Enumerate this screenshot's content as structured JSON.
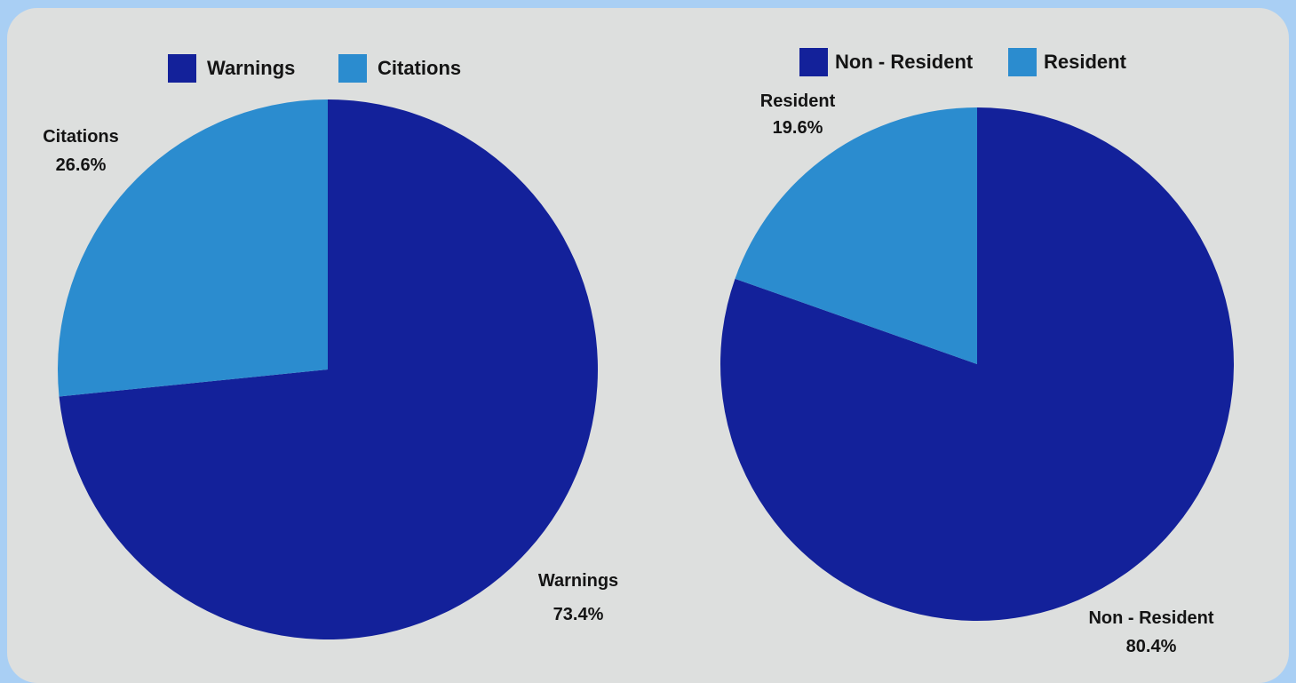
{
  "colors": {
    "page_background": "#a9cff4",
    "panel_background": "#dddfde",
    "dark_blue": "#13219a",
    "light_blue": "#2b8ccf"
  },
  "chart_data": [
    {
      "type": "pie",
      "title": "",
      "legend_placement": "top",
      "slices": [
        {
          "label": "Warnings",
          "value": 73.4,
          "display": "73.4%",
          "color": "#13219a"
        },
        {
          "label": "Citations",
          "value": 26.6,
          "display": "26.6%",
          "color": "#2b8ccf"
        }
      ]
    },
    {
      "type": "pie",
      "title": "",
      "legend_placement": "top",
      "slices": [
        {
          "label": "Non - Resident",
          "value": 80.4,
          "display": "80.4%",
          "color": "#13219a"
        },
        {
          "label": "Resident",
          "value": 19.6,
          "display": "19.6%",
          "color": "#2b8ccf"
        }
      ]
    }
  ]
}
